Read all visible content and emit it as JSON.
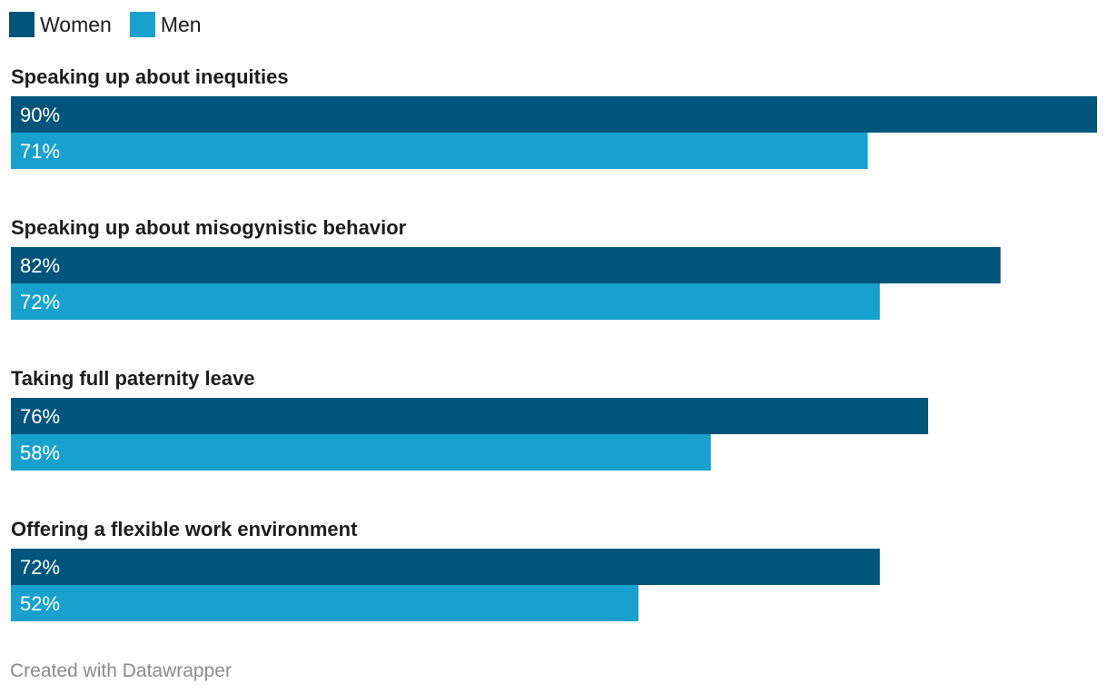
{
  "legend": {
    "women_label": "Women",
    "men_label": "Men"
  },
  "colors": {
    "women": "#03557c",
    "men": "#18a1cd"
  },
  "footer": "Created with Datawrapper",
  "chart_data": {
    "type": "bar",
    "orientation": "horizontal",
    "categories": [
      "Speaking up about inequities",
      "Speaking up about misogynistic behavior",
      "Taking full paternity leave",
      "Offering a flexible work environment"
    ],
    "series": [
      {
        "name": "Women",
        "values": [
          90,
          82,
          76,
          72
        ],
        "labels": [
          "90%",
          "82%",
          "76%",
          "72%"
        ]
      },
      {
        "name": "Men",
        "values": [
          71,
          72,
          58,
          52
        ],
        "labels": [
          "71%",
          "72%",
          "58%",
          "52%"
        ]
      }
    ],
    "xlim": [
      0,
      90
    ],
    "grid": false,
    "legend_position": "top-left"
  }
}
